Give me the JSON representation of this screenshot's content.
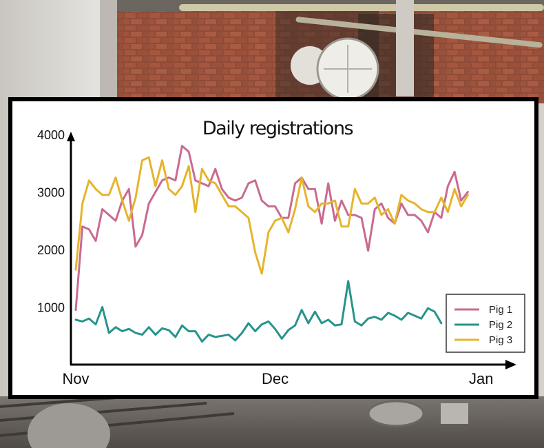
{
  "chart_data": {
    "type": "line",
    "title": "Daily registrations",
    "xlabel": "",
    "ylabel": "",
    "ylim": [
      0,
      4000
    ],
    "yticks": [
      1000,
      2000,
      3000,
      4000
    ],
    "x_tick_labels": [
      "Nov",
      "Dec",
      "Jan"
    ],
    "x_tick_days": [
      0,
      30,
      61
    ],
    "xlim_days": [
      0,
      63
    ],
    "grid": false,
    "legend_position": "bottom-right",
    "colors": {
      "Pig 1": "#c96a92",
      "Pig 2": "#27948c",
      "Pig 3": "#e6b42c"
    },
    "series": [
      {
        "name": "Pig 1",
        "values": [
          950,
          2400,
          2350,
          2150,
          2700,
          2600,
          2500,
          2850,
          3050,
          2050,
          2250,
          2800,
          3000,
          3200,
          3250,
          3200,
          3800,
          3700,
          3200,
          3150,
          3100,
          3400,
          3050,
          2900,
          2850,
          2900,
          3150,
          3200,
          2850,
          2750,
          2750,
          2550,
          2550,
          3150,
          3250,
          3050,
          3050,
          2450,
          3150,
          2500,
          2850,
          2600,
          2600,
          2550,
          1980,
          2700,
          2800,
          2550,
          2450,
          2800,
          2600,
          2600,
          2500,
          2300,
          2650,
          2550,
          3100,
          3350,
          2850,
          3000
        ]
      },
      {
        "name": "Pig 2",
        "values": [
          780,
          750,
          800,
          700,
          1000,
          550,
          650,
          580,
          620,
          550,
          520,
          650,
          520,
          630,
          600,
          480,
          680,
          580,
          580,
          400,
          520,
          480,
          500,
          520,
          420,
          550,
          720,
          580,
          700,
          750,
          620,
          450,
          600,
          680,
          950,
          720,
          920,
          720,
          780,
          680,
          700,
          1450,
          750,
          680,
          800,
          830,
          780,
          900,
          850,
          780,
          900,
          850,
          800,
          980,
          920,
          720
        ]
      },
      {
        "name": "Pig 3",
        "values": [
          1650,
          2800,
          3200,
          3050,
          2950,
          2950,
          3250,
          2850,
          2500,
          2900,
          3550,
          3600,
          3100,
          3550,
          3050,
          2950,
          3100,
          3450,
          2650,
          3400,
          3200,
          3150,
          2950,
          2750,
          2750,
          2650,
          2550,
          1950,
          1580,
          2300,
          2500,
          2550,
          2300,
          2700,
          3250,
          2750,
          2650,
          2800,
          2800,
          2850,
          2400,
          2400,
          3050,
          2800,
          2800,
          2900,
          2600,
          2700,
          2450,
          2950,
          2850,
          2800,
          2700,
          2650,
          2650,
          2900,
          2650,
          3050,
          2750,
          2950
        ]
      }
    ]
  }
}
